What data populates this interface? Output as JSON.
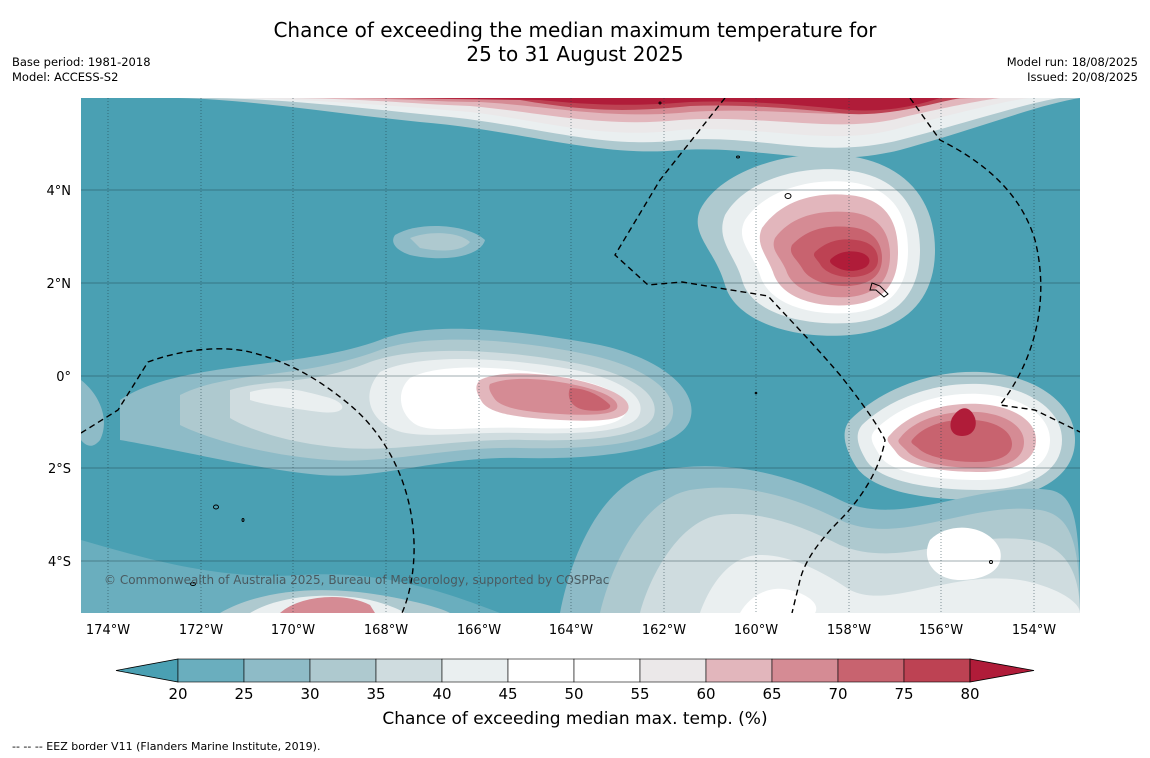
{
  "title_line1": "Chance of exceeding the median maximum temperature for",
  "title_line2": "25 to 31 August 2025",
  "meta_left": {
    "base_period": "Base period: 1981-2018",
    "model": "Model: ACCESS-S2"
  },
  "meta_right": {
    "model_run": "Model run: 18/08/2025",
    "issued": "Issued: 20/08/2025"
  },
  "lat_ticks": [
    "4°N",
    "2°N",
    "0°",
    "2°S",
    "4°S"
  ],
  "lon_ticks": [
    "174°W",
    "172°W",
    "170°W",
    "168°W",
    "166°W",
    "164°W",
    "162°W",
    "160°W",
    "158°W",
    "156°W",
    "154°W"
  ],
  "copyright": "© Commonwealth of Australia 2025, Bureau of Meteorology, supported by COSPPac",
  "colorbar": {
    "title": "Chance of exceeding median max. temp. (%)",
    "ticks": [
      "20",
      "25",
      "30",
      "35",
      "40",
      "45",
      "50",
      "55",
      "60",
      "65",
      "70",
      "75",
      "80"
    ],
    "colors": [
      "#4aa0b3",
      "#6aaebe",
      "#8ebbc7",
      "#aec9cf",
      "#cfdcdf",
      "#eaeff0",
      "#ffffff",
      "#ffffff",
      "#ebe8e9",
      "#e2b6bc",
      "#d58b94",
      "#c8636f",
      "#bd4253",
      "#b01c39"
    ]
  },
  "footnote": "--  --  -- EEZ border V11 (Flanders Marine Institute, 2019)."
}
